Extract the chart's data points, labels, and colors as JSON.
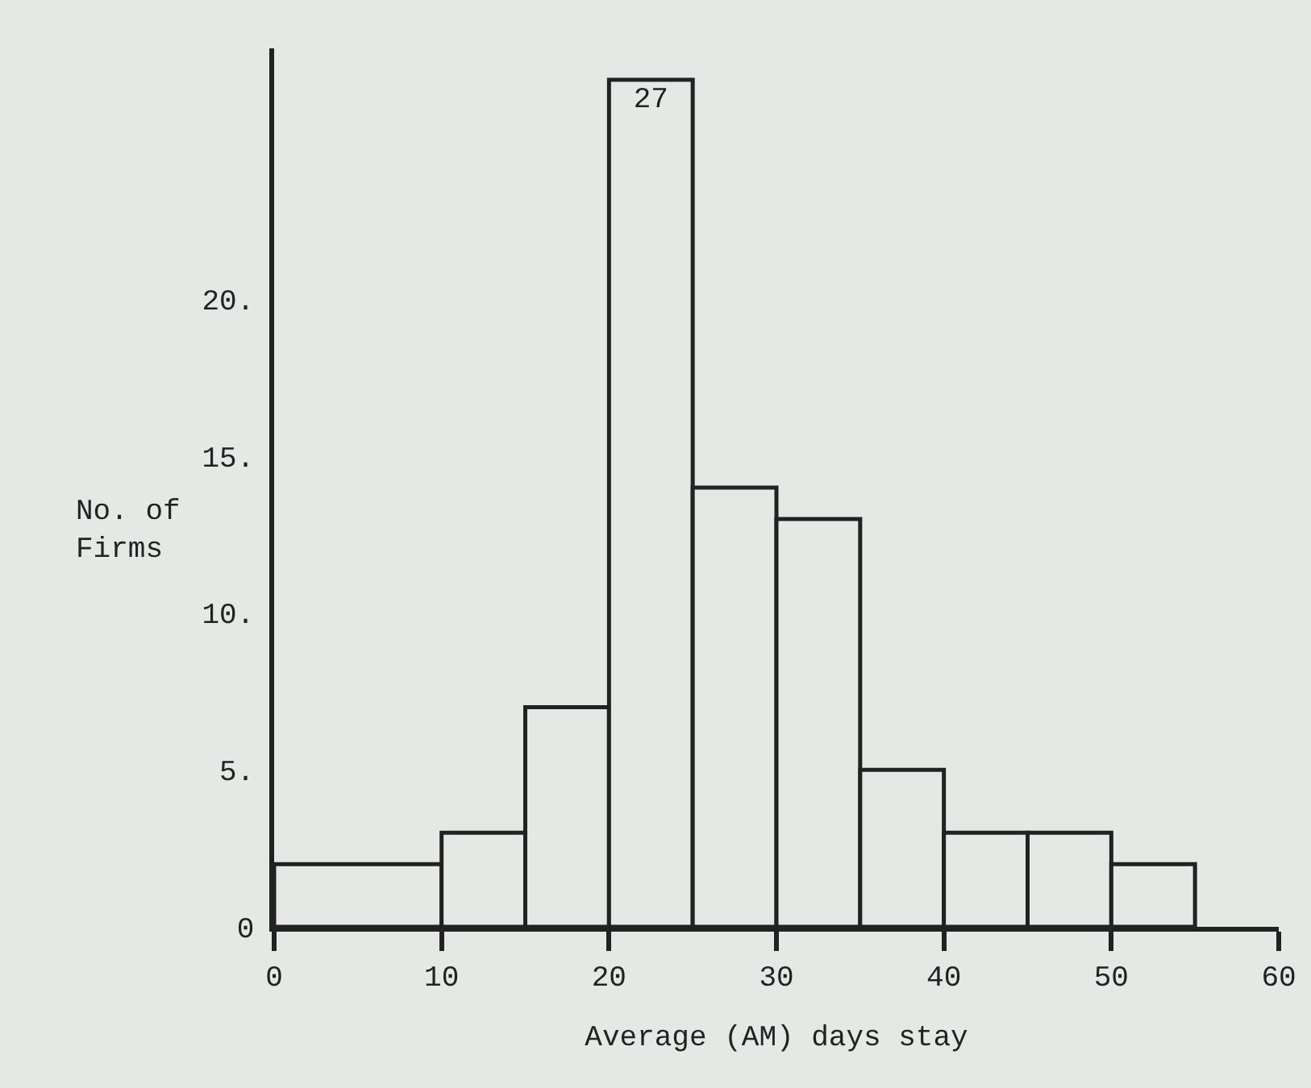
{
  "chart_data": {
    "type": "histogram",
    "xlabel": "Average (AM) days stay",
    "ylabel": "No. of\nFirms",
    "bins": [
      0,
      10,
      15,
      20,
      25,
      30,
      35,
      40,
      45,
      50,
      55
    ],
    "values": [
      2,
      3,
      7,
      27,
      14,
      13,
      5,
      3,
      3,
      2
    ],
    "value_labels": [
      null,
      null,
      null,
      "27",
      null,
      null,
      null,
      null,
      null,
      null
    ],
    "color": "#e4e9e6",
    "xlim": [
      0,
      60
    ],
    "xticks": [
      0,
      10,
      20,
      30,
      40,
      50,
      60
    ],
    "ylim": [
      0,
      28
    ],
    "yticks": [
      {
        "value": 0,
        "label": "0"
      },
      {
        "value": 5,
        "label": "5."
      },
      {
        "value": 10,
        "label": "10."
      },
      {
        "value": 15,
        "label": "15."
      },
      {
        "value": 20,
        "label": "20."
      }
    ]
  }
}
